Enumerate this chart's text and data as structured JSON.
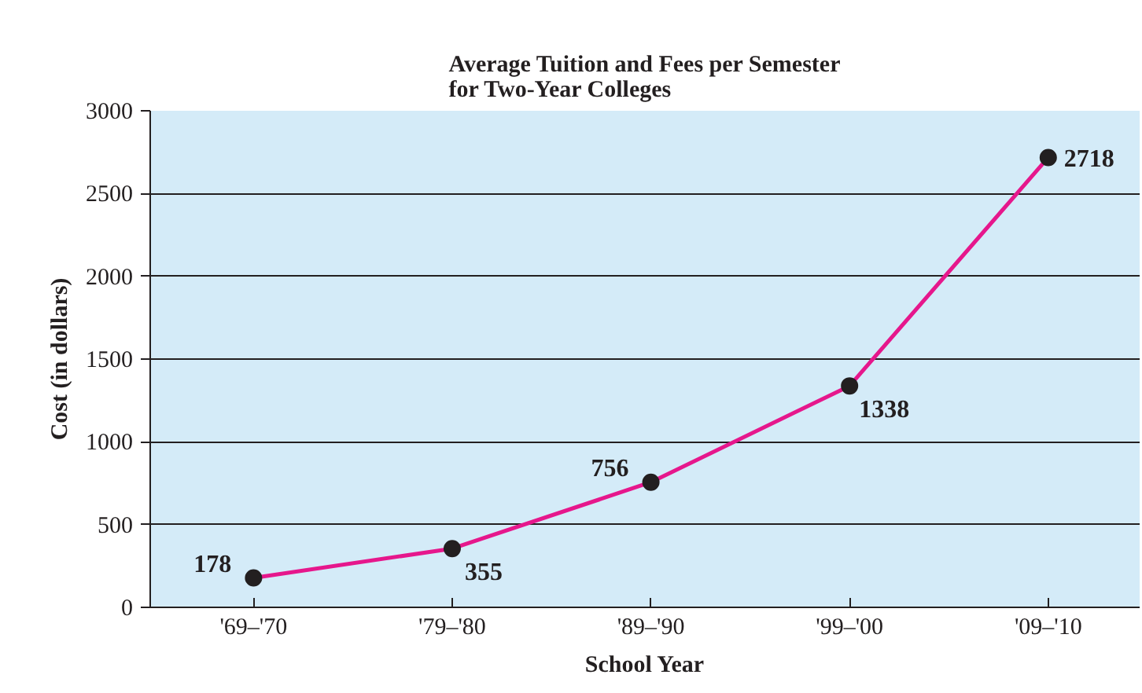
{
  "chart_data": {
    "type": "line",
    "title": "Average Tuition and Fees per Semester\nfor Two-Year Colleges",
    "xlabel": "School Year",
    "ylabel": "Cost (in dollars)",
    "categories": [
      "'69–'70",
      "'79–'80",
      "'89–'90",
      "'99–'00",
      "'09–'10"
    ],
    "series": [
      {
        "color": "#e6178c",
        "values": [
          178,
          355,
          756,
          1338,
          2718
        ]
      }
    ],
    "ylim": [
      0,
      3000
    ],
    "yticks": [
      0,
      500,
      1000,
      1500,
      2000,
      2500,
      3000
    ],
    "grid": "y",
    "marker": "circle",
    "line_style": "solid",
    "data_labels": true
  }
}
